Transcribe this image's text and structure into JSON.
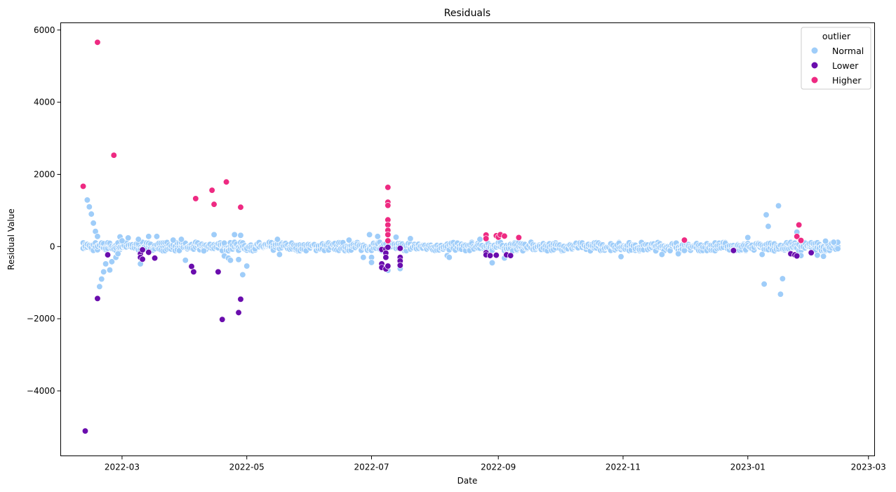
{
  "chart_data": {
    "type": "scatter",
    "title": "Residuals",
    "xlabel": "Date",
    "ylabel": "Residual Value",
    "x_ticks": [
      "2022-03",
      "2022-05",
      "2022-07",
      "2022-09",
      "2022-11",
      "2023-01",
      "2023-03"
    ],
    "y_ticks": [
      "−4000",
      "−2000",
      "0",
      "2000",
      "4000",
      "6000"
    ],
    "xlim": [
      "2022-01-30",
      "2023-03-04"
    ],
    "ylim": [
      -5800,
      6200
    ],
    "grid": false,
    "legend": {
      "title": "outlier",
      "position": "top-right",
      "entries": [
        {
          "label": "Normal",
          "color": "#9fcdf9"
        },
        {
          "label": "Lower",
          "color": "#6a0dad"
        },
        {
          "label": "Higher",
          "color": "#ee2a82"
        }
      ]
    },
    "series": [
      {
        "name": "Higher",
        "color": "#ee2a82",
        "points": [
          [
            "2022-02-10",
            1670
          ],
          [
            "2022-02-17",
            5660
          ],
          [
            "2022-02-25",
            2530
          ],
          [
            "2022-04-06",
            1330
          ],
          [
            "2022-04-14",
            1560
          ],
          [
            "2022-04-15",
            1170
          ],
          [
            "2022-04-21",
            1790
          ],
          [
            "2022-04-28",
            1090
          ],
          [
            "2022-07-09",
            1640
          ],
          [
            "2022-07-09",
            1230
          ],
          [
            "2022-07-09",
            1140
          ],
          [
            "2022-07-09",
            740
          ],
          [
            "2022-07-09",
            600
          ],
          [
            "2022-07-09",
            450
          ],
          [
            "2022-07-09",
            330
          ],
          [
            "2022-07-09",
            160
          ],
          [
            "2022-08-26",
            320
          ],
          [
            "2022-08-26",
            220
          ],
          [
            "2022-08-31",
            300
          ],
          [
            "2022-09-01",
            260
          ],
          [
            "2022-09-02",
            330
          ],
          [
            "2022-09-04",
            290
          ],
          [
            "2022-09-11",
            250
          ],
          [
            "2022-12-01",
            180
          ],
          [
            "2023-01-26",
            600
          ],
          [
            "2023-01-25",
            280
          ],
          [
            "2023-01-27",
            170
          ]
        ]
      },
      {
        "name": "Lower",
        "color": "#6a0dad",
        "points": [
          [
            "2022-02-11",
            -5110
          ],
          [
            "2022-02-17",
            -1440
          ],
          [
            "2022-02-22",
            -230
          ],
          [
            "2022-03-10",
            -200
          ],
          [
            "2022-03-10",
            -300
          ],
          [
            "2022-03-11",
            -90
          ],
          [
            "2022-03-11",
            -350
          ],
          [
            "2022-03-14",
            -160
          ],
          [
            "2022-03-17",
            -320
          ],
          [
            "2022-04-04",
            -550
          ],
          [
            "2022-04-05",
            -700
          ],
          [
            "2022-04-17",
            -700
          ],
          [
            "2022-04-19",
            -2020
          ],
          [
            "2022-04-27",
            -1830
          ],
          [
            "2022-04-28",
            -1460
          ],
          [
            "2022-07-06",
            -80
          ],
          [
            "2022-07-06",
            -480
          ],
          [
            "2022-07-06",
            -580
          ],
          [
            "2022-07-08",
            -70
          ],
          [
            "2022-07-08",
            -180
          ],
          [
            "2022-07-08",
            -300
          ],
          [
            "2022-07-08",
            -620
          ],
          [
            "2022-07-09",
            -20
          ],
          [
            "2022-07-09",
            -540
          ],
          [
            "2022-07-15",
            -50
          ],
          [
            "2022-07-15",
            -300
          ],
          [
            "2022-07-15",
            -400
          ],
          [
            "2022-07-15",
            -520
          ],
          [
            "2022-08-26",
            -170
          ],
          [
            "2022-08-26",
            -230
          ],
          [
            "2022-08-28",
            -250
          ],
          [
            "2022-08-31",
            -240
          ],
          [
            "2022-09-05",
            -230
          ],
          [
            "2022-09-07",
            -250
          ],
          [
            "2022-12-25",
            -110
          ],
          [
            "2023-01-22",
            -200
          ],
          [
            "2023-01-24",
            -230
          ],
          [
            "2023-01-25",
            -260
          ],
          [
            "2023-02-01",
            -170
          ]
        ]
      },
      {
        "name": "Normal",
        "color": "#9fcdf9",
        "points": [
          [
            "2022-02-12",
            1290
          ],
          [
            "2022-02-13",
            1100
          ],
          [
            "2022-02-14",
            900
          ],
          [
            "2022-02-15",
            650
          ],
          [
            "2022-02-16",
            420
          ],
          [
            "2022-02-17",
            280
          ],
          [
            "2022-02-18",
            -1110
          ],
          [
            "2022-02-19",
            -900
          ],
          [
            "2022-02-20",
            -700
          ],
          [
            "2022-02-21",
            -480
          ],
          [
            "2022-02-23",
            -650
          ],
          [
            "2022-02-24",
            -420
          ],
          [
            "2022-02-26",
            -300
          ],
          [
            "2022-02-27",
            -200
          ],
          [
            "2022-02-28",
            270
          ],
          [
            "2022-03-01",
            160
          ],
          [
            "2022-03-04",
            240
          ],
          [
            "2022-03-09",
            200
          ],
          [
            "2022-03-10",
            -480
          ],
          [
            "2022-03-14",
            280
          ],
          [
            "2022-03-18",
            280
          ],
          [
            "2022-03-26",
            180
          ],
          [
            "2022-03-30",
            200
          ],
          [
            "2022-04-01",
            -380
          ],
          [
            "2022-04-10",
            -120
          ],
          [
            "2022-04-15",
            330
          ],
          [
            "2022-04-20",
            -260
          ],
          [
            "2022-04-22",
            -320
          ],
          [
            "2022-04-23",
            -380
          ],
          [
            "2022-04-25",
            330
          ],
          [
            "2022-04-27",
            -360
          ],
          [
            "2022-04-28",
            310
          ],
          [
            "2022-04-29",
            -780
          ],
          [
            "2022-05-01",
            -540
          ],
          [
            "2022-05-16",
            200
          ],
          [
            "2022-05-17",
            -220
          ],
          [
            "2022-06-20",
            180
          ],
          [
            "2022-06-27",
            -300
          ],
          [
            "2022-06-30",
            330
          ],
          [
            "2022-07-01",
            -300
          ],
          [
            "2022-07-01",
            -440
          ],
          [
            "2022-07-04",
            280
          ],
          [
            "2022-07-09",
            -660
          ],
          [
            "2022-07-13",
            260
          ],
          [
            "2022-07-15",
            -610
          ],
          [
            "2022-07-20",
            220
          ],
          [
            "2022-08-07",
            -250
          ],
          [
            "2022-08-08",
            -300
          ],
          [
            "2022-08-23",
            200
          ],
          [
            "2022-08-29",
            -450
          ],
          [
            "2022-09-04",
            -320
          ],
          [
            "2022-10-31",
            -280
          ],
          [
            "2022-11-20",
            -220
          ],
          [
            "2022-11-28",
            -200
          ],
          [
            "2023-01-01",
            250
          ],
          [
            "2023-01-08",
            -220
          ],
          [
            "2023-01-09",
            -1040
          ],
          [
            "2023-01-10",
            880
          ],
          [
            "2023-01-11",
            560
          ],
          [
            "2023-01-16",
            1130
          ],
          [
            "2023-01-17",
            -1320
          ],
          [
            "2023-01-18",
            -890
          ],
          [
            "2023-01-25",
            400
          ],
          [
            "2023-01-27",
            -250
          ],
          [
            "2023-02-04",
            -240
          ],
          [
            "2023-02-07",
            -270
          ],
          [
            "2023-02-08",
            150
          ],
          [
            "2023-02-12",
            120
          ]
        ],
        "dense_band": {
          "from": "2022-02-10",
          "to": "2023-02-14",
          "amplitude": 120
        }
      }
    ]
  }
}
